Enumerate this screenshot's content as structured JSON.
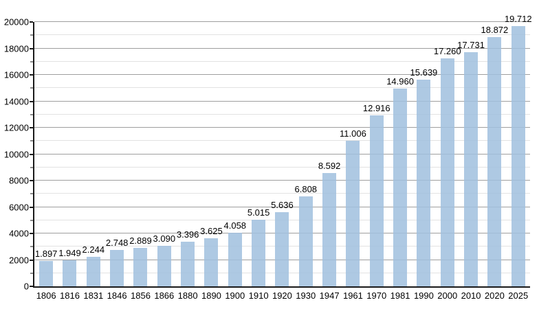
{
  "chart_data": {
    "type": "bar",
    "title": "",
    "xlabel": "",
    "ylabel": "",
    "categories": [
      "1806",
      "1816",
      "1831",
      "1846",
      "1856",
      "1866",
      "1880",
      "1890",
      "1900",
      "1910",
      "1920",
      "1930",
      "1947",
      "1961",
      "1970",
      "1981",
      "1990",
      "2000",
      "2010",
      "2020",
      "2025"
    ],
    "values": [
      1897,
      1949,
      2244,
      2748,
      2889,
      3090,
      3396,
      3625,
      4058,
      5015,
      5636,
      6808,
      8592,
      11006,
      12916,
      14960,
      15639,
      17260,
      17731,
      18872,
      19712
    ],
    "bar_labels": [
      "1.897",
      "1.949",
      "2.244",
      "2.748",
      "2.889",
      "3.090",
      "3.396",
      "3.625",
      "4.058",
      "5.015",
      "5.636",
      "6.808",
      "8.592",
      "11.006",
      "12.916",
      "14.960",
      "15.639",
      "17.260",
      "17.731",
      "18.872",
      "19.712"
    ],
    "ylim": [
      0,
      20000
    ],
    "y_major_step": 2000,
    "y_minor_step": 1000,
    "y_tick_labels": [
      "0",
      "2000",
      "4000",
      "6000",
      "8000",
      "10000",
      "12000",
      "14000",
      "16000",
      "18000",
      "20000"
    ],
    "grid": true,
    "legend": null,
    "colors": {
      "bar_fill": "#a0c0de",
      "bar_fill_opacity": 0.85,
      "bar_fill_visible": "#aec9e3",
      "grid_major": "#9e9e9e",
      "grid_minor": "#e2e2e2",
      "axis": "#1a1a1a",
      "text": "#000000",
      "background": "#ffffff"
    }
  }
}
